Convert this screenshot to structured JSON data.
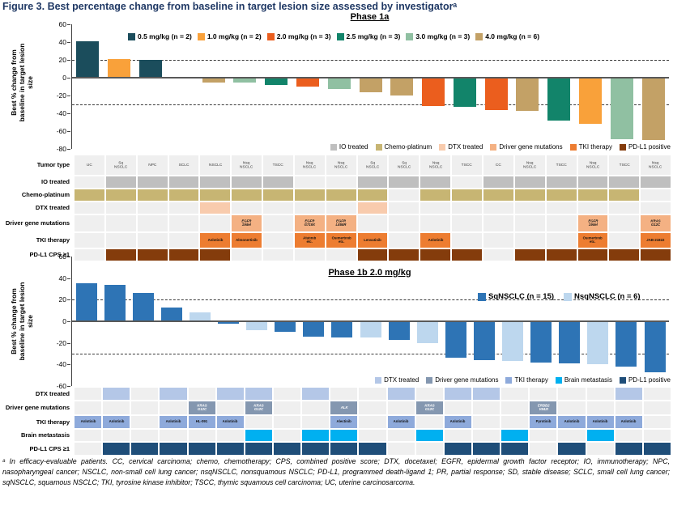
{
  "title": "Figure 3. Best percentage change from baseline in target lesion size assessed by investigatorᵃ",
  "footnote": "ᵃ In efficacy-evaluable patients. CC, cervical carcinoma; chemo, chemotherapy; CPS, combined positive score; DTX, docetaxel; EGFR, epidermal growth factor receptor; IO, immunotherapy; NPC, nasopharyngeal cancer; NSCLC, non-small cell lung cancer; nsqNSCLC, nonsquamous NSCLC; PD-L1, programmed death-ligand 1; PR, partial response; SD, stable disease; SCLC, small cell lung cancer; sqNSCLC, squamous NSCLC; TKI, tyrosine kinase inhibitor; TSCC, thymic squamous cell carcinoma; UC, uterine carcinosarcoma.",
  "chart_data": [
    {
      "type": "bar",
      "panel": "Phase 1a",
      "title": "Phase 1a",
      "ylabel": "Best % change from baseline in target lesion size",
      "ylim": [
        -80,
        60
      ],
      "yticks": [
        60,
        40,
        20,
        0,
        -20,
        -40,
        -60,
        -80
      ],
      "reference_lines": [
        20,
        -30
      ],
      "grid": false,
      "legend_position": "top",
      "categories": [
        "UC",
        "Sq NSCLC",
        "NPC",
        "SCLC",
        "NSCLC",
        "Nsq NSCLC",
        "TSCC",
        "Nsq NSCLC",
        "Nsq NSCLC",
        "Sq NSCLC",
        "Sq NSCLC",
        "Nsq NSCLC",
        "TSCC",
        "CC",
        "Nsq NSCLC",
        "TSCC",
        "Nsq NSCLC",
        "TSCC",
        "Nsq NSCLC"
      ],
      "values": [
        41,
        21,
        20,
        0,
        -5,
        -5,
        -8,
        -10,
        -13,
        -16,
        -20,
        -32,
        -33,
        -36,
        -37,
        -48,
        -52,
        -69,
        -70
      ],
      "dose_mg_kg": [
        0.5,
        1.0,
        0.5,
        4.0,
        4.0,
        3.0,
        2.5,
        2.0,
        3.0,
        4.0,
        4.0,
        2.0,
        2.5,
        2.0,
        4.0,
        2.5,
        1.0,
        3.0,
        4.0
      ]
    },
    {
      "type": "bar",
      "panel": "Phase 1b",
      "title": "Phase 1b 2.0 mg/kg",
      "ylabel": "Best % change from baseline in target lesion size",
      "ylim": [
        -60,
        60
      ],
      "yticks": [
        60,
        40,
        20,
        0,
        -20,
        -40,
        -60
      ],
      "reference_lines": [
        20,
        -30
      ],
      "grid": false,
      "legend_position": "right",
      "groups": [
        "Sq",
        "Sq",
        "Sq",
        "Sq",
        "Nsq",
        "Sq",
        "Nsq",
        "Sq",
        "Sq",
        "Sq",
        "Nsq",
        "Sq",
        "Nsq",
        "Sq",
        "Sq",
        "Nsq",
        "Sq",
        "Sq",
        "Nsq",
        "Sq",
        "Sq"
      ],
      "values": [
        35,
        34,
        26,
        13,
        8,
        -2,
        -8,
        -10,
        -14,
        -15,
        -15,
        -17,
        -20,
        -34,
        -36,
        -37,
        -38,
        -39,
        -40,
        -42,
        -47
      ]
    }
  ],
  "phase1a": {
    "subtitle": "Phase 1a",
    "ylabel_lines": "Best % change from\nbaseline in target lesion\nsize",
    "dose_legend": [
      {
        "label": "0.5 mg/kg (n = 2)",
        "dose": "0.5",
        "color": "#1b4d5c"
      },
      {
        "label": "1.0 mg/kg (n = 2)",
        "dose": "1",
        "color": "#f9a13a"
      },
      {
        "label": "2.0 mg/kg (n = 3)",
        "dose": "2",
        "color": "#eb5e1e"
      },
      {
        "label": "2.5 mg/kg (n = 3)",
        "dose": "2.5",
        "color": "#12846a"
      },
      {
        "label": "3.0 mg/kg (n = 3)",
        "dose": "3",
        "color": "#90c0a2"
      },
      {
        "label": "4.0 mg/kg (n = 6)",
        "dose": "4",
        "color": "#c3a166"
      }
    ],
    "category_legend": [
      {
        "label": "IO treated",
        "color": "#bfbfbf"
      },
      {
        "label": "Chemo-platinum",
        "color": "#c7b573"
      },
      {
        "label": "DTX treated",
        "color": "#f8cbad"
      },
      {
        "label": "Driver gene mutations",
        "color": "#f4b183"
      },
      {
        "label": "TKI therapy",
        "color": "#ed7d31"
      },
      {
        "label": "PD-L1 positive",
        "color": "#843c0c"
      }
    ],
    "table": {
      "empty_cell_color": "#efefef",
      "rows": [
        {
          "label": "Tumor type",
          "kind": "header",
          "values": [
            "UC",
            "Sq|NSCLC",
            "NPC",
            "SCLC",
            "NSCLC",
            "Nsq|NSCLC",
            "TSCC",
            "Nsq|NSCLC",
            "Nsq|NSCLC",
            "Sq|NSCLC",
            "Sq|NSCLC",
            "Nsq|NSCLC",
            "TSCC",
            "CC",
            "Nsq|NSCLC",
            "TSCC",
            "Nsq|NSCLC",
            "TSCC",
            "Nsq|NSCLC"
          ]
        },
        {
          "label": "IO treated",
          "kind": "fill",
          "color": "#bfbfbf",
          "values": [
            0,
            1,
            1,
            1,
            1,
            1,
            1,
            0,
            0,
            1,
            1,
            1,
            0,
            1,
            1,
            1,
            1,
            1,
            1
          ]
        },
        {
          "label": "Chemo-platinum",
          "kind": "fill",
          "color": "#c7b573",
          "values": [
            1,
            1,
            1,
            1,
            1,
            1,
            1,
            1,
            1,
            1,
            0,
            1,
            1,
            1,
            1,
            1,
            1,
            1,
            0
          ]
        },
        {
          "label": "DTX treated",
          "kind": "fill",
          "color": "#f8cbad",
          "values": [
            0,
            0,
            0,
            0,
            1,
            0,
            0,
            0,
            0,
            1,
            0,
            0,
            0,
            0,
            0,
            0,
            0,
            0,
            0
          ]
        },
        {
          "label": "Driver gene mutations",
          "kind": "text",
          "color": "#f4b183",
          "text_color": "#1a1a1a",
          "values": [
            "",
            "",
            "",
            "",
            "",
            "EGFR|19del",
            "",
            "EGFR|G719X",
            "EGFR|L858R",
            "",
            "",
            "",
            "",
            "",
            "",
            "",
            "EGFR|19del",
            "",
            "KRAS|G12C"
          ]
        },
        {
          "label": "TKI therapy",
          "kind": "text",
          "color": "#ed7d31",
          "text_color": "#111111",
          "values": [
            "",
            "",
            "",
            "",
            "Anlotinib",
            "Almonertinib",
            "",
            "Afatinib|etc.",
            "Osimertinib|etc.",
            "Lenvatinib",
            "",
            "Anlotinib",
            "",
            "",
            "",
            "",
            "Osimertinib|etc.",
            "",
            "JAB-21822"
          ]
        },
        {
          "label": "PD-L1 CPS ≥1",
          "kind": "fill",
          "color": "#843c0c",
          "values": [
            0,
            1,
            1,
            1,
            1,
            0,
            0,
            0,
            0,
            1,
            1,
            1,
            1,
            0,
            1,
            1,
            1,
            1,
            1
          ]
        }
      ]
    }
  },
  "phase1b": {
    "subtitle": "Phase 1b 2.0 mg/kg",
    "ylabel_lines": "Best % change from\nbaseline in target lesion\nsize",
    "group_legend": [
      {
        "label": "SqNSCLC (n = 15)",
        "group": "Sq",
        "color": "#2e74b5"
      },
      {
        "label": "NsqNSCLC (n = 6)",
        "group": "Nsq",
        "color": "#bdd7ee"
      }
    ],
    "category_legend": [
      {
        "label": "DTX treated",
        "color": "#b4c7e7"
      },
      {
        "label": "Driver gene mutations",
        "color": "#8497b0"
      },
      {
        "label": "TKI therapy",
        "color": "#8eaadb"
      },
      {
        "label": "Brain metastasis",
        "color": "#00b0f0"
      },
      {
        "label": "PD-L1 positive",
        "color": "#1f4e79"
      }
    ],
    "table": {
      "empty_cell_color": "#efefef",
      "rows": [
        {
          "label": "DTX treated",
          "kind": "fill",
          "color": "#b4c7e7",
          "values": [
            0,
            1,
            0,
            1,
            0,
            1,
            1,
            0,
            1,
            0,
            0,
            1,
            0,
            1,
            1,
            0,
            0,
            0,
            0,
            1,
            0
          ]
        },
        {
          "label": "Driver gene mutations",
          "kind": "text",
          "color": "#8497b0",
          "text_color": "#ffffff",
          "values": [
            "",
            "",
            "",
            "",
            "KRAS|G12C",
            "",
            "KRAS|G12C",
            "",
            "",
            "ALK",
            "",
            "",
            "KRAS|G12C",
            "",
            "",
            "",
            "ERBB2|V842I",
            "",
            "",
            "",
            ""
          ]
        },
        {
          "label": "TKI therapy",
          "kind": "text",
          "color": "#8eaadb",
          "text_color": "#111111",
          "values": [
            "Anlotinib",
            "Anlotinib",
            "",
            "Anlotinib",
            "HL-091",
            "Anlotinib",
            "",
            "",
            "",
            "Alectinib",
            "",
            "Anlotinib",
            "",
            "Anlotinib",
            "",
            "",
            "Pyrotinib",
            "Anlotinib",
            "Anlotinib",
            "Anlotinib",
            ""
          ]
        },
        {
          "label": "Brain metastasis",
          "kind": "fill",
          "color": "#00b0f0",
          "values": [
            0,
            0,
            0,
            0,
            0,
            0,
            1,
            0,
            1,
            1,
            0,
            0,
            1,
            0,
            0,
            1,
            0,
            0,
            1,
            0,
            0
          ]
        },
        {
          "label": "PD-L1 CPS ≥1",
          "kind": "fill",
          "color": "#1f4e79",
          "values": [
            0,
            1,
            1,
            1,
            1,
            1,
            1,
            1,
            1,
            1,
            1,
            0,
            0,
            1,
            1,
            1,
            0,
            1,
            0,
            1,
            1
          ]
        }
      ]
    }
  }
}
